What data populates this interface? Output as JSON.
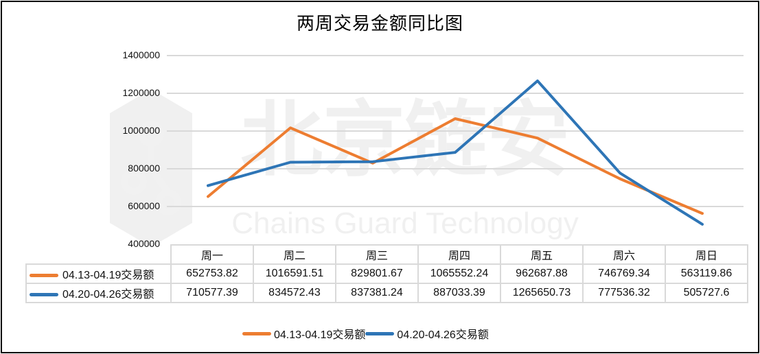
{
  "chart": {
    "title": "两周交易金额同比图",
    "watermark": {
      "cn": "北京链安",
      "en": "Chains Guard Technology"
    },
    "yaxis": {
      "ticks": [
        "1400000",
        "1200000",
        "1000000",
        "800000",
        "600000",
        "400000"
      ]
    },
    "table": {
      "columns": [
        "周一",
        "周二",
        "周三",
        "周四",
        "周五",
        "周六",
        "周日"
      ],
      "rows": [
        {
          "label": "04.13-04.19交易额",
          "color": "#ED7D31",
          "values": [
            "652753.82",
            "1016591.51",
            "829801.67",
            "1065552.24",
            "962687.88",
            "746769.34",
            "563119.86"
          ]
        },
        {
          "label": "04.20-04.26交易额",
          "color": "#2E75B6",
          "values": [
            "710577.39",
            "834572.43",
            "837381.24",
            "887033.39",
            "1265650.73",
            "777536.32",
            "505727.6"
          ]
        }
      ]
    },
    "legend": [
      {
        "label": "04.13-04.19交易额",
        "color": "#ED7D31"
      },
      {
        "label": "04.20-04.26交易额",
        "color": "#2E75B6"
      }
    ]
  },
  "chart_data": {
    "type": "line",
    "title": "两周交易金额同比图",
    "xlabel": "",
    "ylabel": "",
    "categories": [
      "周一",
      "周二",
      "周三",
      "周四",
      "周五",
      "周六",
      "周日"
    ],
    "series": [
      {
        "name": "04.13-04.19交易额",
        "color": "#ED7D31",
        "values": [
          652753.82,
          1016591.51,
          829801.67,
          1065552.24,
          962687.88,
          746769.34,
          563119.86
        ]
      },
      {
        "name": "04.20-04.26交易额",
        "color": "#2E75B6",
        "values": [
          710577.39,
          834572.43,
          837381.24,
          887033.39,
          1265650.73,
          777536.32,
          505727.6
        ]
      }
    ],
    "ylim": [
      400000,
      1400000
    ],
    "yticks": [
      400000,
      600000,
      800000,
      1000000,
      1200000,
      1400000
    ],
    "grid": true,
    "legend_position": "bottom",
    "data_table": true
  }
}
